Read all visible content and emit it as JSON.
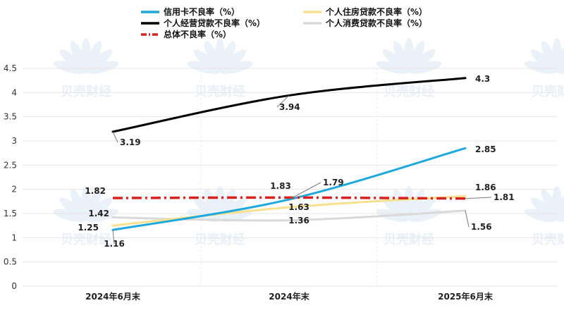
{
  "chart_data": {
    "type": "line",
    "categories": [
      "2024年6月末",
      "2024年末",
      "2025年6月末"
    ],
    "y_ticks": [
      "0",
      "0.5",
      "1",
      "1.5",
      "2",
      "2.5",
      "3",
      "3.5",
      "4",
      "4.5"
    ],
    "ylim": [
      0,
      4.5
    ],
    "grid": "horizontal",
    "legend_position": "top",
    "series": [
      {
        "name": "信用卡不良率（%）",
        "values": [
          1.16,
          1.79,
          2.85
        ],
        "labels": [
          "1.16",
          "1.79",
          "2.85"
        ],
        "color": "#1fa8dc",
        "dash": "solid"
      },
      {
        "name": "个人住房贷款不良率（%）",
        "values": [
          1.25,
          1.63,
          1.86
        ],
        "labels": [
          "1.25",
          "1.63",
          "1.86"
        ],
        "color": "#f7e08e",
        "dash": "solid"
      },
      {
        "name": "个人经营贷款不良率（%）",
        "values": [
          3.19,
          3.94,
          4.3
        ],
        "labels": [
          "3.19",
          "3.94",
          "4.3"
        ],
        "color": "#000000",
        "dash": "solid"
      },
      {
        "name": "个人消费贷款不良率（%）",
        "values": [
          1.42,
          1.36,
          1.56
        ],
        "labels": [
          "1.42",
          "1.36",
          "1.56"
        ],
        "color": "#d9d9d9",
        "dash": "solid"
      },
      {
        "name": "总体不良率（%）",
        "values": [
          1.82,
          1.83,
          1.81
        ],
        "labels": [
          "1.82",
          "1.83",
          "1.81"
        ],
        "color": "#d9201f",
        "dash": "dashdot"
      }
    ]
  },
  "watermark": {
    "text": "贝壳财经"
  }
}
